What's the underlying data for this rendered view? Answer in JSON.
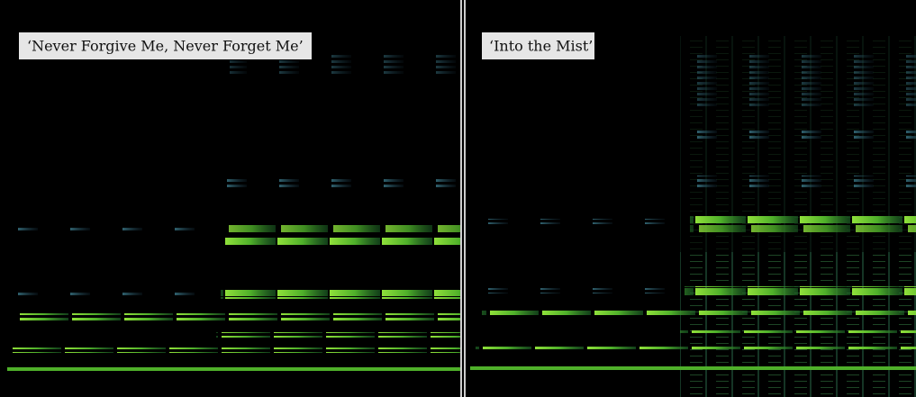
{
  "panels": [
    {
      "label": "‘Never Forgive Me, Never Forget Me’"
    },
    {
      "label": "‘Into the Mist’"
    }
  ]
}
